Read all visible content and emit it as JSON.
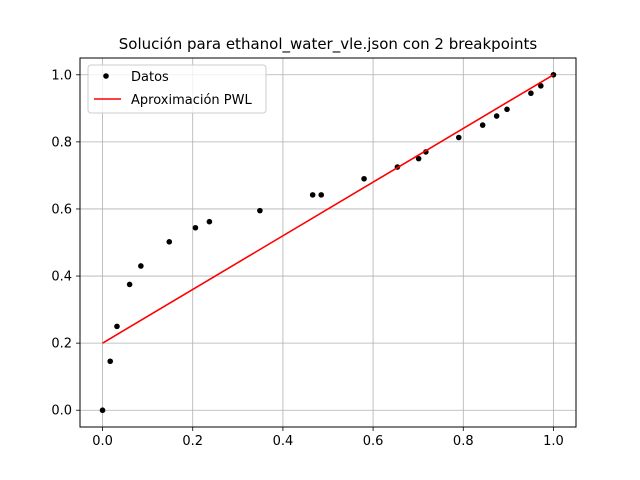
{
  "chart_data": {
    "type": "scatter",
    "title": "Solución para ethanol_water_vle.json con 2 breakpoints",
    "xlabel": "",
    "ylabel": "",
    "xlim": [
      -0.05,
      1.05
    ],
    "ylim": [
      -0.05,
      1.05
    ],
    "xticks": [
      "0.0",
      "0.2",
      "0.4",
      "0.6",
      "0.8",
      "1.0"
    ],
    "yticks": [
      "0.0",
      "0.2",
      "0.4",
      "0.6",
      "0.8",
      "1.0"
    ],
    "grid": true,
    "legend_position": "upper-left",
    "series": [
      {
        "name": "Datos",
        "kind": "points",
        "color": "#000000",
        "x": [
          0.0,
          0.017,
          0.032,
          0.06,
          0.085,
          0.148,
          0.206,
          0.237,
          0.349,
          0.466,
          0.485,
          0.58,
          0.654,
          0.701,
          0.717,
          0.79,
          0.843,
          0.874,
          0.897,
          0.95,
          0.972,
          1.0
        ],
        "y": [
          0.0,
          0.146,
          0.25,
          0.375,
          0.43,
          0.502,
          0.544,
          0.562,
          0.595,
          0.642,
          0.642,
          0.69,
          0.725,
          0.75,
          0.77,
          0.813,
          0.85,
          0.877,
          0.897,
          0.945,
          0.967,
          1.0
        ]
      },
      {
        "name": "Aproximación PWL",
        "kind": "line",
        "color": "#ff0000",
        "x": [
          0.0,
          1.0
        ],
        "y": [
          0.2,
          1.0
        ]
      }
    ]
  }
}
